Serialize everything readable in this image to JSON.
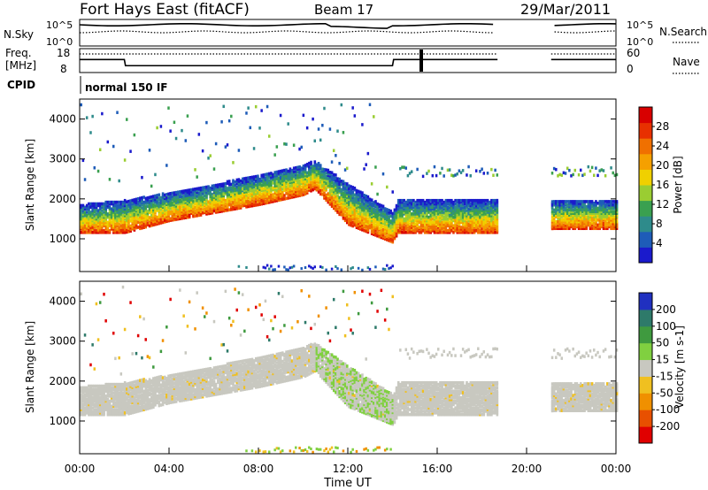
{
  "header": {
    "station": "Fort Hays East (fitACF)",
    "beam": "Beam 17",
    "date": "29/Mar/2011"
  },
  "noise_panel": {
    "left_label": "N.Sky",
    "right_label": "N.Search",
    "ticks": [
      "10^5",
      "10^0"
    ]
  },
  "freq_panel": {
    "left_label_1": "Freq.",
    "left_label_2": "[MHz]",
    "left_ticks": [
      "18",
      "8"
    ],
    "right_label": "Nave",
    "right_ticks": [
      "60",
      "0"
    ]
  },
  "cpid": {
    "label": "CPID",
    "mode": "normal 150 IF"
  },
  "power_panel": {
    "ylabel": "Slant Range [km]",
    "yticks": [
      "1000",
      "2000",
      "3000",
      "4000"
    ],
    "colorbar_label": "Power [dB]",
    "colorbar_ticks": [
      "4",
      "8",
      "12",
      "16",
      "20",
      "24",
      "28"
    ],
    "colors": [
      "#1a1acc",
      "#1e5cb8",
      "#2e8b8b",
      "#3aa050",
      "#9acd32",
      "#f0d000",
      "#f5a000",
      "#f07000",
      "#e83000",
      "#d80000"
    ]
  },
  "velocity_panel": {
    "ylabel": "Slant Range [km]",
    "yticks": [
      "1000",
      "2000",
      "3000",
      "4000"
    ],
    "colorbar_label": "Velocity [m s-1]",
    "colorbar_ticks": [
      "200",
      "100",
      "50",
      "15",
      "-15",
      "-50",
      "-100",
      "-200"
    ],
    "colors": [
      "#2030c0",
      "#2e7a6a",
      "#3f9a3f",
      "#80d040",
      "#c8c8c0",
      "#f0c020",
      "#f09000",
      "#e85000",
      "#e00000"
    ]
  },
  "xaxis": {
    "label": "Time UT",
    "ticks": [
      "00:00",
      "04:00",
      "08:00",
      "12:00",
      "16:00",
      "20:00",
      "00:00"
    ]
  },
  "chart_data": {
    "type": "heatmap",
    "x_range_hours": [
      0,
      24
    ],
    "y_range_km": [
      180,
      4500
    ],
    "data_gaps_hours": [
      [
        18.7,
        21.1
      ]
    ],
    "main_band": [
      {
        "t": 0.0,
        "low": 1200,
        "high": 1900
      },
      {
        "t": 2.0,
        "low": 1200,
        "high": 2000
      },
      {
        "t": 4.0,
        "low": 1500,
        "high": 2200
      },
      {
        "t": 6.0,
        "low": 1700,
        "high": 2400
      },
      {
        "t": 8.0,
        "low": 1900,
        "high": 2650
      },
      {
        "t": 10.0,
        "low": 2150,
        "high": 2900
      },
      {
        "t": 10.5,
        "low": 2300,
        "high": 3000
      },
      {
        "t": 12.0,
        "low": 1400,
        "high": 2400
      },
      {
        "t": 14.0,
        "low": 950,
        "high": 1700
      },
      {
        "t": 14.2,
        "low": 1200,
        "high": 2000
      },
      {
        "t": 18.6,
        "low": 1200,
        "high": 2000
      },
      {
        "t": 21.2,
        "low": 1300,
        "high": 2000
      },
      {
        "t": 24.0,
        "low": 1300,
        "high": 2000
      }
    ],
    "freq_mhz": [
      {
        "t": 0,
        "v": 13.5
      },
      {
        "t": 2,
        "v": 13.5
      },
      {
        "t": 2.05,
        "v": 10.5
      },
      {
        "t": 14,
        "v": 10.5
      },
      {
        "t": 14.05,
        "v": 13.5
      },
      {
        "t": 18.7,
        "v": 13.5
      },
      {
        "t": 21.1,
        "v": 13.5
      },
      {
        "t": 24,
        "v": 13.5
      }
    ]
  }
}
